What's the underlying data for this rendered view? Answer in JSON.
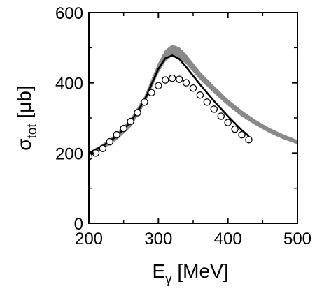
{
  "chart_data": {
    "type": "line",
    "title": "",
    "xlabel": {
      "main": "E",
      "sub": "γ",
      "unit": " [MeV]"
    },
    "ylabel": {
      "main": "σ",
      "sub": "tot",
      "unit": " [μb]"
    },
    "xlim": [
      200,
      500
    ],
    "ylim": [
      0,
      600
    ],
    "x_ticks": [
      200,
      300,
      400,
      500
    ],
    "y_ticks": [
      0,
      200,
      400,
      600
    ],
    "grid": false,
    "legend": "none",
    "series": [
      {
        "style": "band",
        "color": "#8a8a8a",
        "points": [
          {
            "x": 200,
            "lower": 192,
            "upper": 202
          },
          {
            "x": 220,
            "lower": 212,
            "upper": 225
          },
          {
            "x": 240,
            "lower": 238,
            "upper": 255
          },
          {
            "x": 260,
            "lower": 275,
            "upper": 296
          },
          {
            "x": 280,
            "lower": 340,
            "upper": 360
          },
          {
            "x": 300,
            "lower": 430,
            "upper": 455
          },
          {
            "x": 310,
            "lower": 462,
            "upper": 492
          },
          {
            "x": 320,
            "lower": 478,
            "upper": 508
          },
          {
            "x": 330,
            "lower": 470,
            "upper": 500
          },
          {
            "x": 340,
            "lower": 455,
            "upper": 480
          },
          {
            "x": 360,
            "lower": 410,
            "upper": 430
          },
          {
            "x": 380,
            "lower": 372,
            "upper": 390
          },
          {
            "x": 400,
            "lower": 336,
            "upper": 352
          },
          {
            "x": 420,
            "lower": 305,
            "upper": 320
          },
          {
            "x": 440,
            "lower": 280,
            "upper": 293
          },
          {
            "x": 460,
            "lower": 258,
            "upper": 270
          },
          {
            "x": 480,
            "lower": 240,
            "upper": 252
          },
          {
            "x": 500,
            "lower": 226,
            "upper": 236
          }
        ]
      },
      {
        "style": "line",
        "color": "#000000",
        "points": [
          {
            "x": 200,
            "y": 200
          },
          {
            "x": 220,
            "y": 220
          },
          {
            "x": 240,
            "y": 248
          },
          {
            "x": 260,
            "y": 288
          },
          {
            "x": 280,
            "y": 350
          },
          {
            "x": 300,
            "y": 440
          },
          {
            "x": 310,
            "y": 470
          },
          {
            "x": 320,
            "y": 478
          },
          {
            "x": 330,
            "y": 468
          },
          {
            "x": 340,
            "y": 445
          },
          {
            "x": 360,
            "y": 395
          },
          {
            "x": 380,
            "y": 348
          },
          {
            "x": 400,
            "y": 305
          },
          {
            "x": 420,
            "y": 265
          },
          {
            "x": 430,
            "y": 248
          }
        ]
      },
      {
        "style": "markers",
        "color": "#000000",
        "points": [
          {
            "x": 200,
            "y": 190
          },
          {
            "x": 210,
            "y": 200
          },
          {
            "x": 220,
            "y": 213
          },
          {
            "x": 230,
            "y": 232
          },
          {
            "x": 240,
            "y": 252
          },
          {
            "x": 250,
            "y": 270
          },
          {
            "x": 260,
            "y": 290
          },
          {
            "x": 270,
            "y": 315
          },
          {
            "x": 280,
            "y": 345
          },
          {
            "x": 290,
            "y": 372
          },
          {
            "x": 300,
            "y": 392
          },
          {
            "x": 310,
            "y": 408
          },
          {
            "x": 320,
            "y": 413
          },
          {
            "x": 330,
            "y": 410
          },
          {
            "x": 340,
            "y": 400
          },
          {
            "x": 350,
            "y": 385
          },
          {
            "x": 360,
            "y": 365
          },
          {
            "x": 370,
            "y": 345
          },
          {
            "x": 380,
            "y": 325
          },
          {
            "x": 390,
            "y": 305
          },
          {
            "x": 400,
            "y": 287
          },
          {
            "x": 410,
            "y": 268
          },
          {
            "x": 420,
            "y": 252
          },
          {
            "x": 430,
            "y": 238
          }
        ]
      }
    ]
  }
}
